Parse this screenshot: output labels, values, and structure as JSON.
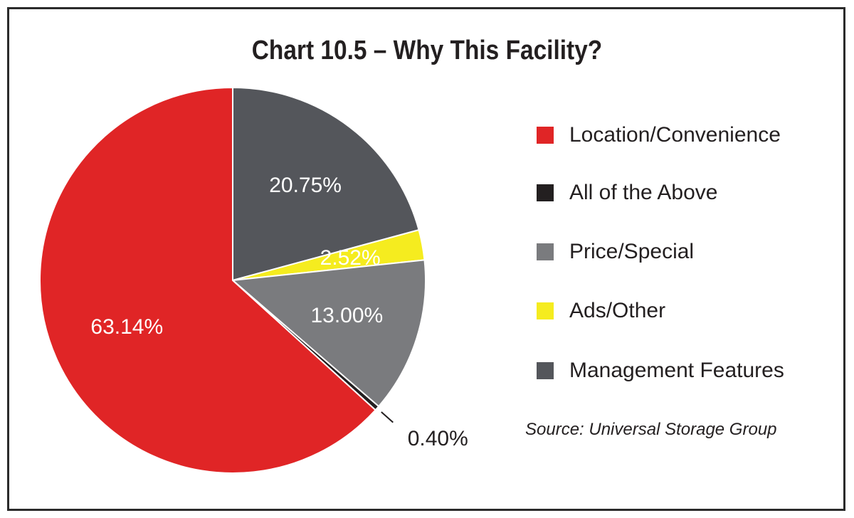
{
  "chart_data": {
    "type": "pie",
    "title": "Chart 10.5 – Why This Facility?",
    "slices": [
      {
        "name": "Management Features",
        "value": 20.75,
        "label": "20.75%",
        "color": "#54565b"
      },
      {
        "name": "Ads/Other",
        "value": 2.52,
        "label": "2.52%",
        "color": "#f5ec1f"
      },
      {
        "name": "Price/Special",
        "value": 13.0,
        "label": "13.00%",
        "color": "#7a7b7e"
      },
      {
        "name": "All of the Above",
        "value": 0.4,
        "label": "0.40%",
        "color": "#231f20"
      },
      {
        "name": "Location/Convenience",
        "value": 63.14,
        "label": "63.14%",
        "color": "#e02526"
      }
    ],
    "legend": [
      "Location/Convenience",
      "All of the Above",
      "Price/Special",
      "Ads/Other",
      "Management Features"
    ],
    "legend_placement": "right",
    "source": "Source: Universal Storage Group"
  }
}
